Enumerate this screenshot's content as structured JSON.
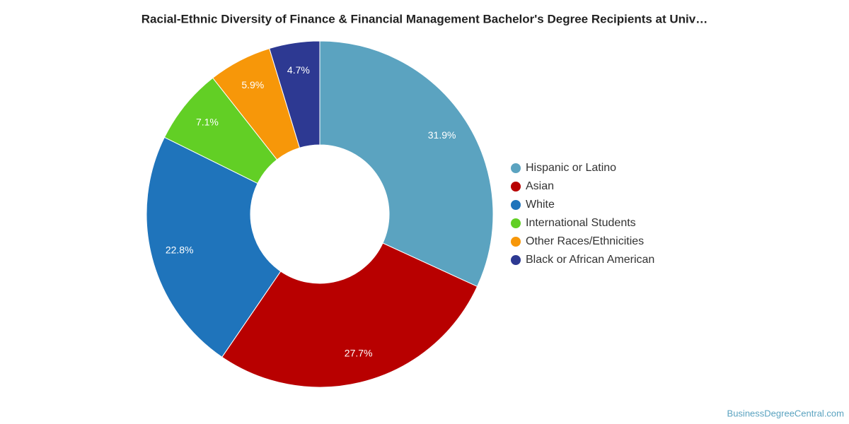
{
  "chart_data": {
    "type": "donut",
    "title": "Racial-Ethnic Diversity of Finance & Financial Management Bachelor's Degree Recipients at Univ…",
    "categories": [
      "Hispanic or Latino",
      "Asian",
      "White",
      "International Students",
      "Other Races/Ethnicities",
      "Black or African American"
    ],
    "values": [
      31.9,
      27.7,
      22.8,
      7.1,
      5.9,
      4.7
    ],
    "value_labels": [
      "31.9%",
      "27.7%",
      "22.8%",
      "7.1%",
      "5.9%",
      "4.7%"
    ],
    "colors": [
      "#5ba3c0",
      "#b80000",
      "#1f74bb",
      "#62cf25",
      "#f79709",
      "#2d3992"
    ],
    "legend": "right",
    "source": "BusinessDegreeCentral.com"
  }
}
